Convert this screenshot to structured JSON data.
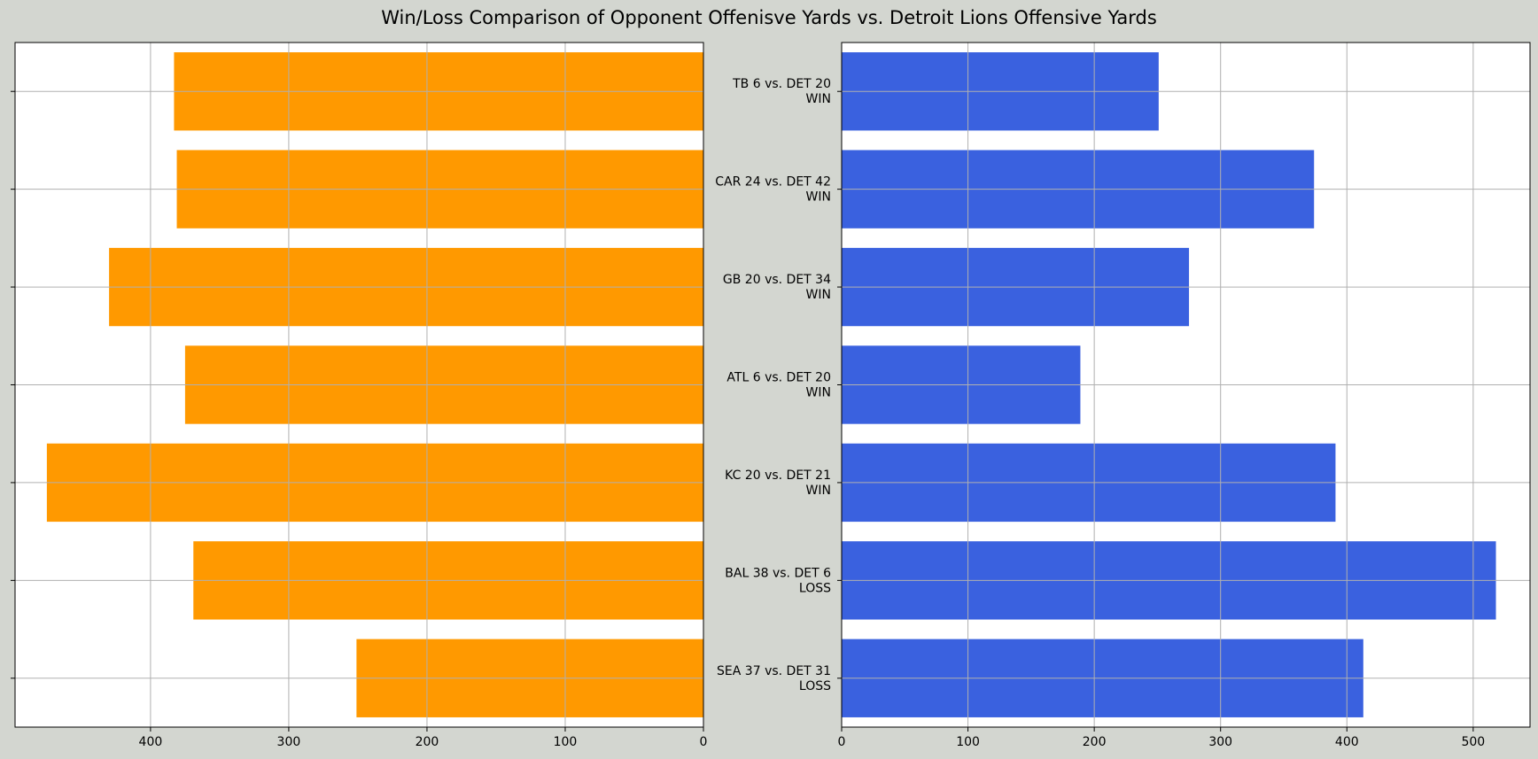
{
  "title": "Win/Loss Comparison of Opponent Offenisve Yards vs. Detroit Lions Offensive Yards",
  "chart_data": {
    "type": "bar",
    "orientation": "horizontal-butterfly",
    "colors": {
      "opponent": "#ff9900",
      "detroit": "#3a61df",
      "figure_bg": "#d3d6d0",
      "axes_bg": "#ffffff",
      "grid": "#b0b0b0"
    },
    "categories": [
      {
        "game": "TB 6 vs. DET 20",
        "result": "WIN"
      },
      {
        "game": "CAR 24 vs. DET 42",
        "result": "WIN"
      },
      {
        "game": "GB 20 vs. DET 34",
        "result": "WIN"
      },
      {
        "game": "ATL 6 vs. DET 20",
        "result": "WIN"
      },
      {
        "game": "KC 20 vs. DET 21",
        "result": "WIN"
      },
      {
        "game": "BAL 38 vs. DET 6",
        "result": "LOSS"
      },
      {
        "game": "SEA 37 vs. DET 31",
        "result": "LOSS"
      }
    ],
    "series": [
      {
        "values": [
          383,
          381,
          430,
          375,
          475,
          369,
          251
        ]
      },
      {
        "values": [
          251,
          374,
          275,
          189,
          391,
          518,
          413
        ]
      }
    ],
    "left_axis": {
      "xlim": [
        498,
        0
      ],
      "ticks": [
        400,
        300,
        200,
        100,
        0
      ],
      "inverted": true
    },
    "right_axis": {
      "xlim": [
        0,
        545
      ],
      "ticks": [
        0,
        100,
        200,
        300,
        400,
        500
      ]
    },
    "grid": true
  }
}
